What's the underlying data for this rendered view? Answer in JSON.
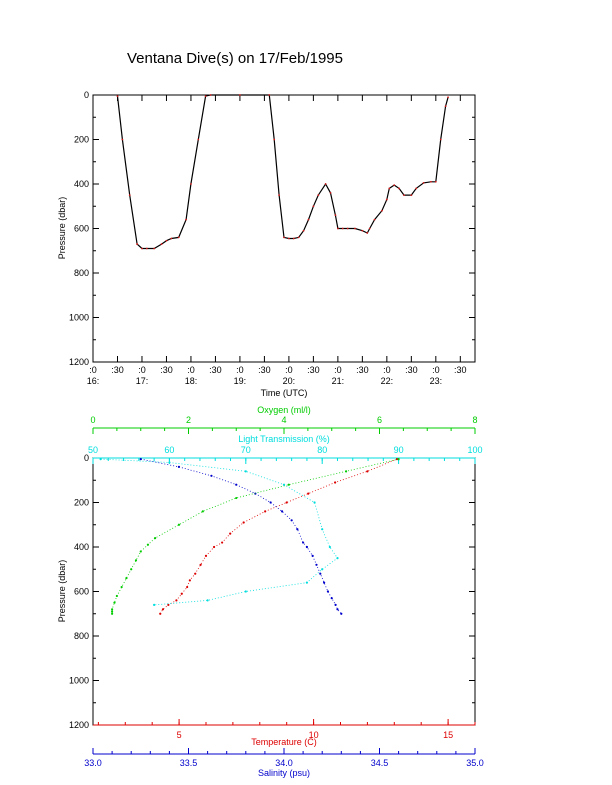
{
  "title": "Ventana Dive(s) on 17/Feb/1995",
  "colors": {
    "axis": "#000000",
    "trace": "#d01818",
    "trace_line": "#000000",
    "temperature": "#dd0000",
    "salinity": "#0000cc",
    "oxygen": "#00cc00",
    "transmission": "#00dddd"
  },
  "chart_data": [
    {
      "type": "line",
      "title": "Ventana Dive(s) on 17/Feb/1995",
      "xlabel": "Time (UTC)",
      "ylabel": "Pressure (dbar)",
      "y_reversed": true,
      "ylim": [
        1200,
        0
      ],
      "yticks": [
        "0",
        "200",
        "400",
        "600",
        "800",
        "1000",
        "1200"
      ],
      "x_units": "hours UTC",
      "xlim": [
        16.0,
        23.8
      ],
      "xticks_top": [
        ":0",
        ":30",
        ":0",
        ":30",
        ":0",
        ":30",
        ":0",
        ":30",
        ":0",
        ":30",
        ":0",
        ":30",
        ":0",
        ":30",
        ":0",
        ":30"
      ],
      "xticks_bottom": [
        "16:",
        "17:",
        "18:",
        "19:",
        "20:",
        "21:",
        "22:",
        "23:"
      ],
      "series": [
        {
          "x": [
            16.5,
            16.6,
            16.75,
            16.9,
            17.0,
            17.1,
            17.25,
            17.4,
            17.5,
            17.6,
            17.75,
            17.9,
            18.0,
            18.15,
            18.3,
            18.4,
            19.0,
            19.6,
            19.7,
            19.8,
            19.9,
            20.0,
            20.1,
            20.2,
            20.3,
            20.4,
            20.5,
            20.6,
            20.75,
            20.85,
            20.95,
            21.0,
            21.1,
            21.2,
            21.35,
            21.5,
            21.6,
            21.65,
            21.75,
            21.9,
            22.0,
            22.05,
            22.15,
            22.25,
            22.35,
            22.5,
            22.6,
            22.75,
            22.9,
            23.0,
            23.1,
            23.2,
            23.25
          ],
          "y": [
            5,
            200,
            450,
            670,
            690,
            690,
            690,
            670,
            655,
            645,
            640,
            560,
            400,
            200,
            5,
            0,
            0,
            0,
            200,
            450,
            640,
            645,
            645,
            640,
            610,
            560,
            500,
            450,
            400,
            440,
            540,
            600,
            600,
            600,
            600,
            610,
            620,
            600,
            560,
            520,
            470,
            420,
            405,
            420,
            450,
            450,
            420,
            395,
            390,
            390,
            200,
            50,
            10
          ]
        }
      ]
    },
    {
      "type": "scatter",
      "ylabel": "Pressure (dbar)",
      "y_reversed": true,
      "ylim": [
        1200,
        0
      ],
      "yticks": [
        "0",
        "200",
        "400",
        "600",
        "800",
        "1000",
        "1200"
      ],
      "axes": {
        "oxygen": {
          "label": "Oxygen (ml/l)",
          "range": [
            0,
            8
          ],
          "ticks": [
            "0",
            "2",
            "4",
            "6",
            "8"
          ]
        },
        "transmission": {
          "label": "Light Transmission (%)",
          "range": [
            50,
            100
          ],
          "ticks": [
            "50",
            "60",
            "70",
            "80",
            "90",
            "100"
          ]
        },
        "temperature": {
          "label": "Temperature (C)",
          "range": [
            1.8,
            16
          ],
          "ticks": [
            "5",
            "10",
            "15"
          ]
        },
        "salinity": {
          "label": "Salinity (psu)",
          "range": [
            33.0,
            35.0
          ],
          "ticks": [
            "33.0",
            "33.5",
            "34.0",
            "34.5",
            "35.0"
          ]
        }
      },
      "series": [
        {
          "name": "Temperature",
          "x": [
            13.1,
            12.0,
            10.8,
            9.8,
            9.0,
            8.2,
            7.4,
            6.9,
            6.6,
            6.3,
            6.0,
            5.8,
            5.6,
            5.4,
            5.3,
            5.1,
            4.9,
            4.6,
            4.4,
            4.3
          ],
          "y": [
            5,
            60,
            110,
            160,
            200,
            240,
            290,
            340,
            380,
            400,
            440,
            480,
            520,
            550,
            580,
            610,
            640,
            660,
            680,
            700
          ]
        },
        {
          "name": "Salinity",
          "x": [
            33.25,
            33.45,
            33.62,
            33.75,
            33.85,
            33.93,
            33.99,
            34.04,
            34.07,
            34.1,
            34.12,
            34.15,
            34.17,
            34.19,
            34.21,
            34.23,
            34.25,
            34.27,
            34.28,
            34.3
          ],
          "y": [
            5,
            40,
            80,
            120,
            160,
            200,
            240,
            280,
            320,
            380,
            400,
            440,
            480,
            520,
            560,
            600,
            630,
            660,
            680,
            700
          ]
        },
        {
          "name": "Oxygen",
          "x": [
            6.4,
            5.3,
            4.1,
            3.0,
            2.3,
            1.8,
            1.3,
            1.15,
            1.0,
            0.9,
            0.8,
            0.7,
            0.6,
            0.5,
            0.45,
            0.4,
            0.4,
            0.4
          ],
          "y": [
            5,
            60,
            120,
            180,
            240,
            300,
            360,
            390,
            420,
            460,
            500,
            540,
            580,
            620,
            650,
            680,
            690,
            700
          ]
        },
        {
          "name": "Light Transmission",
          "x": [
            51,
            60,
            70,
            75,
            79,
            80,
            81,
            82,
            80,
            78,
            70,
            65,
            58
          ],
          "y": [
            5,
            20,
            60,
            120,
            200,
            320,
            400,
            450,
            500,
            560,
            600,
            640,
            660
          ]
        }
      ]
    }
  ]
}
